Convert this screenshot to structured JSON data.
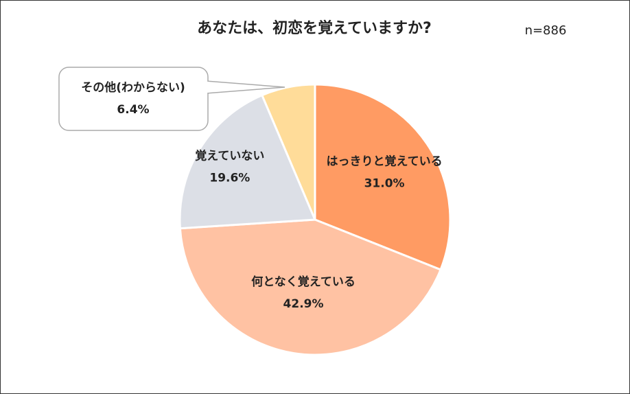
{
  "chart_data": {
    "type": "pie",
    "title": "あなたは、初恋を覚えていますか?",
    "annotation": "n=886",
    "categories": [
      "はっきりと覚えている",
      "何となく覚えている",
      "覚えていない",
      "その他(わからない)"
    ],
    "values": [
      31.0,
      42.9,
      19.6,
      6.4
    ],
    "value_labels": [
      "31.0%",
      "42.9%",
      "19.6%",
      "6.4%"
    ],
    "colors": [
      "#ff9b63",
      "#ffc2a3",
      "#dcdfe6",
      "#ffdc99"
    ]
  }
}
